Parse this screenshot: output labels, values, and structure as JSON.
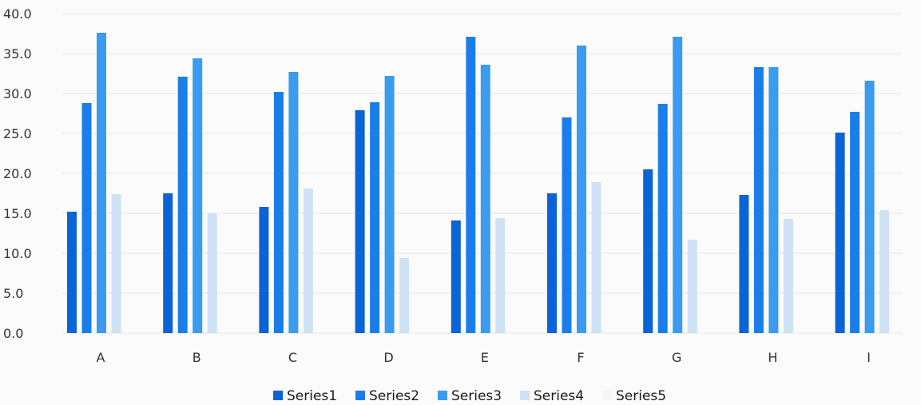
{
  "chart_data": {
    "type": "bar",
    "title": "",
    "xlabel": "",
    "ylabel": "",
    "ylim": [
      0,
      40
    ],
    "yticks": [
      "0.0",
      "5.0",
      "10.0",
      "15.0",
      "20.0",
      "25.0",
      "30.0",
      "35.0",
      "40.0"
    ],
    "grid": true,
    "legend_position": "bottom",
    "categories": [
      "A",
      "B",
      "C",
      "D",
      "E",
      "F",
      "G",
      "H",
      "I"
    ],
    "series": [
      {
        "name": "Series1",
        "color": "#0b63d6",
        "values": [
          15.2,
          17.5,
          15.8,
          27.9,
          14.1,
          17.5,
          20.5,
          17.3,
          25.1
        ]
      },
      {
        "name": "Series2",
        "color": "#1b7ee8",
        "values": [
          28.8,
          32.1,
          30.2,
          28.9,
          37.1,
          27.0,
          28.7,
          33.3,
          27.7
        ]
      },
      {
        "name": "Series3",
        "color": "#3a9bef",
        "values": [
          37.6,
          34.4,
          32.7,
          32.2,
          33.6,
          36.0,
          37.1,
          33.3,
          31.6
        ]
      },
      {
        "name": "Series4",
        "color": "#cfe1f5",
        "values": [
          17.4,
          15.0,
          18.1,
          9.4,
          14.4,
          18.9,
          11.7,
          14.3,
          15.4
        ]
      },
      {
        "name": "Series5",
        "color": "#f3f6fa",
        "values": [
          0,
          0,
          0,
          0,
          0,
          0,
          0,
          0,
          0
        ]
      }
    ]
  }
}
